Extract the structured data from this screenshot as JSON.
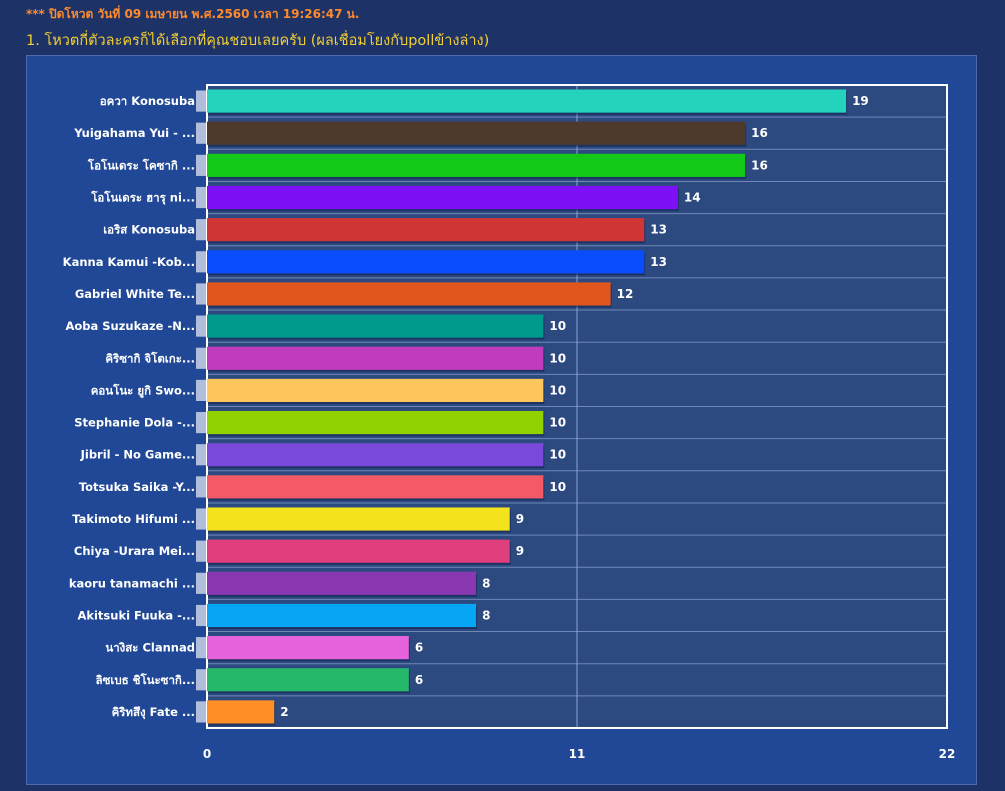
{
  "header": {
    "notice": "*** ปิดโหวต วันที่ 09 เมษายน พ.ศ.2560 เวลา 19:26:47 น.",
    "question": "1. โหวตกี่ตัวละครก็ได้เลือกที่คุณชอบเลยครับ (ผลเชื่อมโยงกับpollข้างล่าง)"
  },
  "chart_data": {
    "type": "bar",
    "orientation": "horizontal",
    "title": "",
    "xlabel": "",
    "ylabel": "",
    "xlim": [
      0,
      22
    ],
    "ticks": [
      "0",
      "11",
      "22"
    ],
    "grid": true,
    "legend": "none",
    "categories": [
      "อควา Konosuba",
      "Yuigahama Yui - ...",
      "โอโนเดระ โคซากิ ...",
      "โอโนเดระ ฮารุ ni...",
      "เอริส Konosuba",
      "Kanna Kamui -Kob...",
      "Gabriel White Te...",
      "Aoba Suzukaze -N...",
      "คิริซากิ จิโตเกะ...",
      "คอนโนะ ยูกิ Swo...",
      "Stephanie Dola -...",
      "Jibril - No Game...",
      "Totsuka Saika -Y...",
      "Takimoto Hifumi ...",
      "Chiya -Urara Mei...",
      "kaoru tanamachi ...",
      "Akitsuki Fuuka -...",
      "นางิสะ Clannad",
      "ลิซเบธ ชิโนะซากิ...",
      "คิริทสึงุ Fate ..."
    ],
    "values": [
      19,
      16,
      16,
      14,
      13,
      13,
      12,
      10,
      10,
      10,
      10,
      10,
      10,
      9,
      9,
      8,
      8,
      6,
      6,
      2
    ],
    "colors": [
      "#23d3bc",
      "#4e3a2c",
      "#12c918",
      "#7d10f7",
      "#cf3535",
      "#0a4dff",
      "#e0561d",
      "#009a8d",
      "#c03cbd",
      "#fec55c",
      "#8fd200",
      "#7b49d9",
      "#f55867",
      "#f4e21c",
      "#df3f7c",
      "#8a38b1",
      "#06a6f4",
      "#e763dd",
      "#26b86a",
      "#fe8f27"
    ]
  }
}
